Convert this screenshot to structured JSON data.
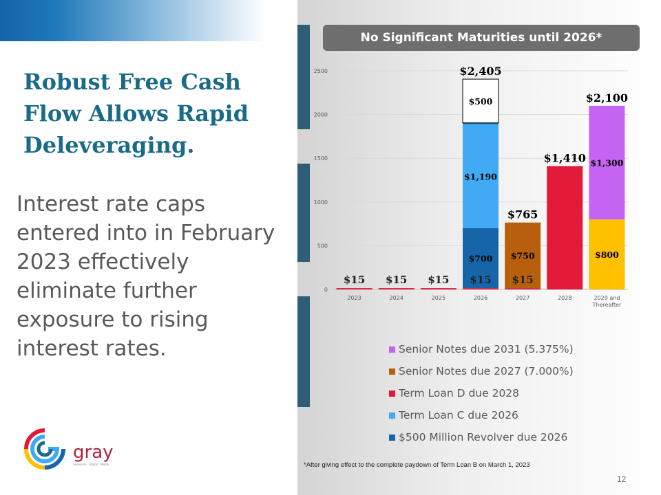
{
  "slide": {
    "headline": "Robust Free Cash Flow Allows Rapid Deleveraging.",
    "body": "Interest rate caps entered into in February 2023 effectively eliminate further exposure to rising interest rates.",
    "banner": "No Significant Maturities until 2026*",
    "footnote": "*After giving effect to the complete paydown of Term Loan B on March 1, 2023",
    "page_number": "12",
    "logo_text": "gray",
    "logo_tagline": "Television · Digital · Media"
  },
  "colors": {
    "headline": "#1a6b86",
    "banner": "#6e6e6e",
    "revolver": "#1565a8",
    "term_loan_c": "#41aaf5",
    "term_loan_d": "#e3193a",
    "notes_2027": "#b75f0c",
    "notes_2031": "#c564f2",
    "other": "#ffc000",
    "undrawn": "#ffffff"
  },
  "chart_data": {
    "type": "bar",
    "stacked": true,
    "categories": [
      "2023",
      "2024",
      "2025",
      "2026",
      "2027",
      "2028",
      "2029 and Thereafter"
    ],
    "ylim": [
      0,
      2500
    ],
    "yticks": [
      0,
      500,
      1000,
      1500,
      2000,
      2500
    ],
    "grid": true,
    "legend_position": "bottom-right",
    "legend": [
      {
        "name": "Senior Notes due 2031 (5.375%)",
        "color": "#c564f2"
      },
      {
        "name": "Senior Notes due 2027 (7.000%)",
        "color": "#b75f0c"
      },
      {
        "name": "Term Loan D due 2028",
        "color": "#e3193a"
      },
      {
        "name": "Term Loan C due 2026",
        "color": "#41aaf5"
      },
      {
        "name": "$500 Million Revolver due 2026",
        "color": "#1565a8"
      }
    ],
    "segments": [
      {
        "category": "2023",
        "value": 15,
        "color": "#e3193a",
        "label": "",
        "outline": false
      },
      {
        "category": "2024",
        "value": 15,
        "color": "#e3193a",
        "label": "",
        "outline": false
      },
      {
        "category": "2025",
        "value": 15,
        "color": "#e3193a",
        "label": "",
        "outline": false
      },
      {
        "category": "2026",
        "value": 15,
        "color": "#e3193a",
        "label": "",
        "outline": false
      },
      {
        "category": "2026",
        "value": 685,
        "color": "#1565a8",
        "label": "$700",
        "outline": false
      },
      {
        "category": "2026",
        "value": 1190,
        "color": "#41aaf5",
        "label": "$1,190",
        "outline": false
      },
      {
        "category": "2026",
        "value": 15,
        "color": "#1565a8",
        "label": "",
        "outline": false
      },
      {
        "category": "2026",
        "value": 500,
        "color": "#ffffff",
        "label": "$500",
        "outline": true
      },
      {
        "category": "2027",
        "value": 15,
        "color": "#e3193a",
        "label": "",
        "outline": false
      },
      {
        "category": "2027",
        "value": 750,
        "color": "#b75f0c",
        "label": "$750",
        "outline": false
      },
      {
        "category": "2028",
        "value": 1410,
        "color": "#e3193a",
        "label": "",
        "outline": false
      },
      {
        "category": "2029 and Thereafter",
        "value": 800,
        "color": "#ffc000",
        "label": "$800",
        "outline": false
      },
      {
        "category": "2029 and Thereafter",
        "value": 1300,
        "color": "#c564f2",
        "label": "$1,300",
        "outline": false
      }
    ],
    "base_labels": [
      {
        "category": "2023",
        "label": "$15"
      },
      {
        "category": "2024",
        "label": "$15"
      },
      {
        "category": "2025",
        "label": "$15"
      },
      {
        "category": "2026",
        "label": "$15"
      },
      {
        "category": "2027",
        "label": "$15"
      }
    ],
    "totals": [
      {
        "category": "2026",
        "value": 2405,
        "label": "$2,405"
      },
      {
        "category": "2027",
        "value": 765,
        "label": "$765"
      },
      {
        "category": "2028",
        "value": 1410,
        "label": "$1,410"
      },
      {
        "category": "2029 and Thereafter",
        "value": 2100,
        "label": "$2,100"
      }
    ]
  }
}
